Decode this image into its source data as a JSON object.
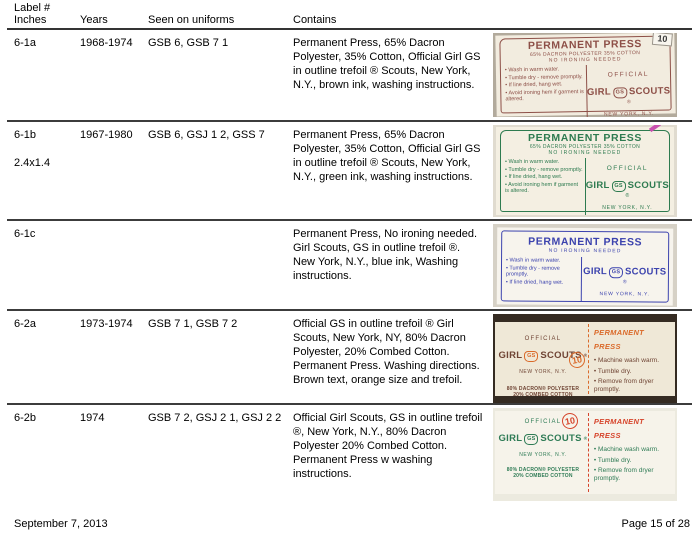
{
  "table": {
    "headers": {
      "label_line1": "Label #",
      "label_line2": "Inches",
      "years": "Years",
      "uniforms": "Seen on uniforms",
      "contains": "Contains"
    }
  },
  "rows": [
    {
      "label_num": "6-1a",
      "inches": "",
      "years": "1968-1974",
      "uniforms": "GSB 6, GSB 7 1",
      "contains": "Permanent Press, 65% Dacron Polyester, 35% Cotton, Official Girl GS in outline trefoil ® Scouts, New York, N.Y., brown ink, washing instructions.",
      "label": {
        "ink_color": "#8d4f47",
        "title": "PERMANENT PRESS",
        "size": "10",
        "fiber_line": "65% DACRON POLYESTER 35% COTTON",
        "iron_line": "NO IRONING NEEDED",
        "bullets": [
          "Wash in warm water.",
          "Tumble dry - remove promptly.",
          "If line dried, hang wet.",
          "Avoid ironing hem if garment is altered."
        ],
        "official": "OFFICIAL",
        "girl": "GIRL",
        "gs": "GS",
        "scouts": "SCOUTS",
        "reg": "®",
        "city": "NEW YORK, N.Y."
      }
    },
    {
      "label_num": "6-1b",
      "inches": "2.4x1.4",
      "years": "1967-1980",
      "uniforms": "GSB 6, GSJ 1 2, GSS 7",
      "contains": "Permanent Press, 65% Dacron Polyester, 35% Cotton, Official Girl GS in outline trefoil ® Scouts, New York, N.Y., green ink, washing instructions.",
      "label": {
        "ink_color": "#2e7b50",
        "title": "PERMANENT PRESS",
        "fiber_line": "65% DACRON POLYESTER 35% COTTON",
        "iron_line": "NO IRONING NEEDED",
        "bullets": [
          "Wash in warm water.",
          "Tumble dry - remove promptly.",
          "If line dried, hang wet.",
          "Avoid ironing hem if garment is altered."
        ],
        "official": "OFFICIAL",
        "girl": "GIRL",
        "gs": "GS",
        "scouts": "SCOUTS",
        "reg": "®",
        "city": "NEW YORK, N.Y."
      }
    },
    {
      "label_num": "6-1c",
      "inches": "",
      "years": "",
      "uniforms": "",
      "contains": "Permanent Press, No ironing needed. Girl Scouts, GS in outline trefoil ®. New York, N.Y., blue ink, Washing instructions.",
      "label": {
        "ink_color": "#3c43ae",
        "title": "PERMANENT PRESS",
        "iron_line": "NO IRONING NEEDED",
        "bullets": [
          "Wash in warm water.",
          "Tumble dry - remove promptly.",
          "If line dried, hang wet."
        ],
        "girl": "GIRL",
        "gs": "GS",
        "scouts": "SCOUTS",
        "reg": "®",
        "city": "NEW YORK, N.Y."
      }
    },
    {
      "label_num": "6-2a",
      "inches": "",
      "years": "1973-1974",
      "uniforms": "GSB 7 1, GSB 7 2",
      "contains": "Official GS in outline trefoil ® Girl Scouts, New York, NY, 80% Dacron Polyester, 20% Combed Cotton. Permanent Press. Washing directions. Brown text, orange size and trefoil.",
      "label": {
        "text_color": "#6f4434",
        "accent_color": "#da6a2a",
        "size": "10",
        "official": "OFFICIAL",
        "girl": "GIRL",
        "gs": "GS",
        "scouts": "SCOUTS",
        "reg": "®",
        "city": "NEW YORK, N.Y.",
        "fiber_line1": "80% DACRON® POLYESTER",
        "fiber_line2": "20% COMBED COTTON",
        "press": "PERMANENT PRESS",
        "bullets": [
          "Machine wash warm.",
          "Tumble dry.",
          "Remove from dryer promptly."
        ]
      }
    },
    {
      "label_num": "6-2b",
      "inches": "",
      "years": "1974",
      "uniforms": "GSB 7 2, GSJ 2 1, GSJ 2 2",
      "contains": "Official Girl Scouts, GS in outline trefoil ®, New York, N.Y., 80% Dacron Polyester 20% Combed Cotton. Permanent Press w washing instructions.",
      "label": {
        "text_color": "#2e7b55",
        "accent_color": "#d6452c",
        "size": "10",
        "official": "OFFICIAL",
        "girl": "GIRL",
        "gs": "GS",
        "scouts": "SCOUTS",
        "reg": "®",
        "city": "NEW YORK, N.Y.",
        "fiber_line1": "80% DACRON® POLYESTER",
        "fiber_line2": "20% COMBED COTTON",
        "press": "PERMANENT PRESS",
        "bullets": [
          "Machine wash warm.",
          "Tumble dry.",
          "Remove from dryer promptly."
        ]
      }
    }
  ],
  "footer": {
    "date": "September 7, 2013",
    "page": "Page 15 of 28"
  }
}
